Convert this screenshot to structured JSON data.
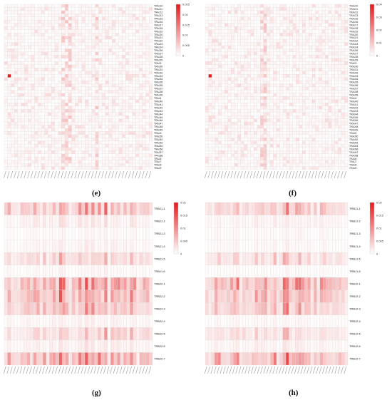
{
  "captions": [
    "(e)",
    "(f)",
    "(g)",
    "(h)"
  ],
  "colors": {
    "high": "#e31a1c",
    "low": "#ffffff",
    "grid": "#d9d9d9"
  },
  "chart_data": [
    {
      "type": "heatmap",
      "panel": "e",
      "rows": [
        "TRAJ10",
        "TRAJ11",
        "TRAJ12",
        "TRAJ13",
        "TRAJ15",
        "TRAJ16",
        "TRAJ17",
        "TRAJ18",
        "TRAJ19",
        "TRAJ20",
        "TRAJ21",
        "TRAJ22",
        "TRAJ23",
        "TRAJ24",
        "TRAJ26",
        "TRAJ27",
        "TRAJ28",
        "TRAJ29",
        "TRAJ3",
        "TRAJ30",
        "TRAJ31",
        "TRAJ32",
        "TRAJ33",
        "TRAJ34",
        "TRAJ35",
        "TRAJ36",
        "TRAJ37",
        "TRAJ38",
        "TRAJ39",
        "TRAJ4",
        "TRAJ40",
        "TRAJ41",
        "TRAJ42",
        "TRAJ43",
        "TRAJ44",
        "TRAJ45",
        "TRAJ46",
        "TRAJ47",
        "TRAJ48",
        "TRAJ49",
        "TRAJ5",
        "TRAJ50",
        "TRAJ52",
        "TRAJ53",
        "TRAJ54",
        "TRAJ56",
        "TRAJ57",
        "TRAJ58",
        "TRAJ6",
        "TRAJ7",
        "TRAJ8",
        "TRAJ9"
      ],
      "colorbar_ticks": [
        "0.025",
        "0.02",
        "0.015",
        "0.01",
        "0.005",
        "0"
      ],
      "vmax": 0.025,
      "max_cell": {
        "row": "TRAJ33",
        "col_index": 1,
        "value": 0.025
      }
    },
    {
      "type": "heatmap",
      "panel": "f",
      "rows": [
        "TRAJ10",
        "TRAJ11",
        "TRAJ12",
        "TRAJ13",
        "TRAJ15",
        "TRAJ16",
        "TRAJ17",
        "TRAJ18",
        "TRAJ19",
        "TRAJ20",
        "TRAJ21",
        "TRAJ22",
        "TRAJ23",
        "TRAJ24",
        "TRAJ26",
        "TRAJ27",
        "TRAJ28",
        "TRAJ29",
        "TRAJ3",
        "TRAJ30",
        "TRAJ31",
        "TRAJ32",
        "TRAJ33",
        "TRAJ34",
        "TRAJ35",
        "TRAJ36",
        "TRAJ37",
        "TRAJ38",
        "TRAJ39",
        "TRAJ4",
        "TRAJ40",
        "TRAJ41",
        "TRAJ42",
        "TRAJ43",
        "TRAJ44",
        "TRAJ45",
        "TRAJ46",
        "TRAJ47",
        "TRAJ48",
        "TRAJ49",
        "TRAJ5",
        "TRAJ50",
        "TRAJ52",
        "TRAJ53",
        "TRAJ54",
        "TRAJ56",
        "TRAJ57",
        "TRAJ58",
        "TRAJ6",
        "TRAJ7",
        "TRAJ8",
        "TRAJ9"
      ],
      "colorbar_ticks": [
        "0.04",
        "0.03",
        "0.02",
        "0.01",
        "0"
      ],
      "vmax": 0.04,
      "max_cell": {
        "row": "TRAJ33",
        "col_index": 1,
        "value": 0.04
      }
    },
    {
      "type": "heatmap",
      "panel": "g",
      "rows": [
        "TRBJ1-1",
        "TRBJ1-2",
        "TRBJ1-3",
        "TRBJ1-4",
        "TRBJ1-5",
        "TRBJ1-6",
        "TRBJ2-1",
        "TRBJ2-2",
        "TRBJ2-3",
        "TRBJ2-4",
        "TRBJ2-5",
        "TRBJ2-6",
        "TRBJ2-7"
      ],
      "colorbar_ticks": [
        "0.02",
        "0.015",
        "0.01",
        "0.005",
        "0"
      ],
      "vmax": 0.02,
      "row_intensity": [
        0.45,
        0.12,
        0.05,
        0.08,
        0.3,
        0.05,
        0.6,
        0.5,
        0.45,
        0.08,
        0.3,
        0.12,
        0.55
      ]
    },
    {
      "type": "heatmap",
      "panel": "h",
      "rows": [
        "TRBJ1-1",
        "TRBJ1-2",
        "TRBJ1-3",
        "TRBJ1-4",
        "TRBJ1-5",
        "TRBJ1-6",
        "TRBJ2-1",
        "TRBJ2-2",
        "TRBJ2-3",
        "TRBJ2-4",
        "TRBJ2-5",
        "TRBJ2-6",
        "TRBJ2-7"
      ],
      "colorbar_ticks": [
        "0.02",
        "0.015",
        "0.01",
        "0.005",
        "0"
      ],
      "vmax": 0.02,
      "row_intensity": [
        0.4,
        0.1,
        0.05,
        0.06,
        0.28,
        0.04,
        0.62,
        0.5,
        0.42,
        0.06,
        0.28,
        0.1,
        0.58
      ]
    }
  ]
}
